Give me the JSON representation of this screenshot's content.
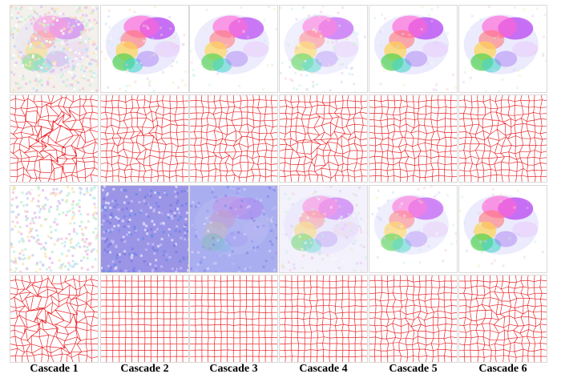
{
  "figure": {
    "columns": [
      {
        "label": "Cascade 1"
      },
      {
        "label": "Cascade 2"
      },
      {
        "label": "Cascade 3"
      },
      {
        "label": "Cascade 4"
      },
      {
        "label": "Cascade 5"
      },
      {
        "label": "Cascade 6"
      }
    ],
    "rows": [
      {
        "kind": "flow-field",
        "noise": [
          0.95,
          0.2,
          0.1,
          0.25,
          0.1,
          0.1
        ],
        "blob": [
          0.55,
          0.95,
          0.9,
          0.75,
          0.95,
          0.95
        ],
        "style": "color"
      },
      {
        "kind": "deformation-grid",
        "distortion": [
          1.0,
          0.45,
          0.4,
          0.55,
          0.35,
          0.45
        ]
      },
      {
        "kind": "flow-field",
        "noise": [
          1.0,
          0.95,
          0.35,
          0.3,
          0.15,
          0.1
        ],
        "blob": [
          0.0,
          0.0,
          0.25,
          0.6,
          0.8,
          0.95
        ],
        "style": "mixed"
      },
      {
        "kind": "deformation-grid",
        "distortion": [
          0.9,
          0.05,
          0.08,
          0.15,
          0.3,
          0.4
        ]
      }
    ],
    "colors": {
      "grid": "#e8262b",
      "background": "#ffffff",
      "caption": "#000000"
    }
  }
}
